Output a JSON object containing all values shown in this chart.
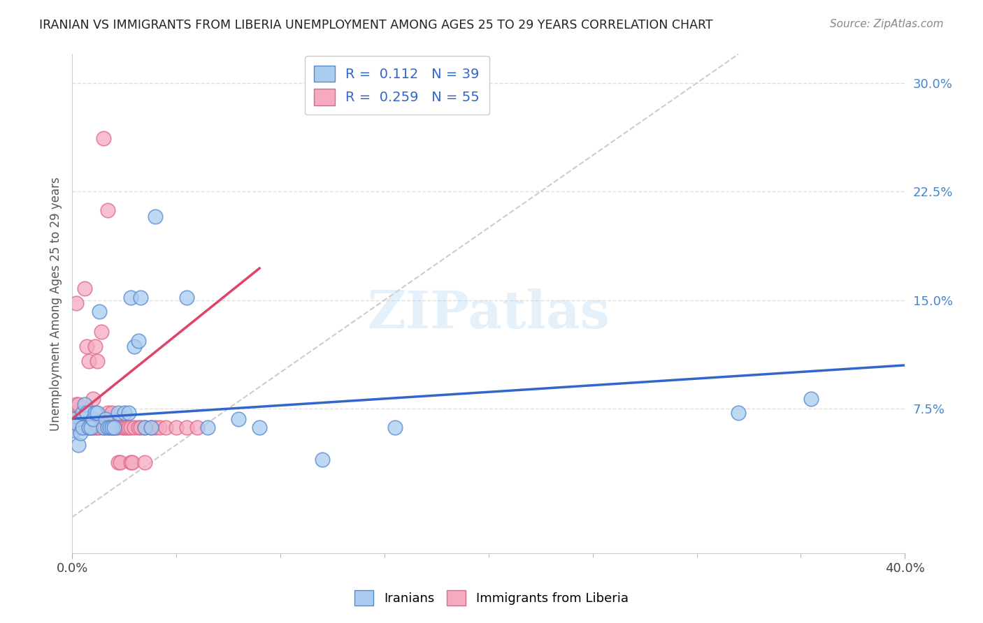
{
  "title": "IRANIAN VS IMMIGRANTS FROM LIBERIA UNEMPLOYMENT AMONG AGES 25 TO 29 YEARS CORRELATION CHART",
  "source": "Source: ZipAtlas.com",
  "ylabel": "Unemployment Among Ages 25 to 29 years",
  "xlim": [
    0.0,
    0.4
  ],
  "ylim": [
    -0.025,
    0.32
  ],
  "yticks": [
    0.075,
    0.15,
    0.225,
    0.3
  ],
  "yticklabels": [
    "7.5%",
    "15.0%",
    "22.5%",
    "30.0%"
  ],
  "watermark": "ZIPatlas",
  "iranians_color": "#aaccf0",
  "liberia_color": "#f5aac0",
  "iranians_edge": "#5588cc",
  "liberia_edge": "#dd6688",
  "line_iranians": "#3366cc",
  "line_liberia": "#dd4466",
  "diagonal_color": "#cccccc",
  "iranians_x": [
    0.0,
    0.001,
    0.002,
    0.003,
    0.004,
    0.005,
    0.005,
    0.006,
    0.007,
    0.008,
    0.009,
    0.01,
    0.011,
    0.012,
    0.013,
    0.015,
    0.016,
    0.017,
    0.018,
    0.019,
    0.02,
    0.022,
    0.025,
    0.027,
    0.028,
    0.03,
    0.032,
    0.033,
    0.035,
    0.038,
    0.04,
    0.055,
    0.065,
    0.08,
    0.09,
    0.12,
    0.155,
    0.32,
    0.355
  ],
  "iranians_y": [
    0.068,
    0.06,
    0.065,
    0.05,
    0.058,
    0.062,
    0.072,
    0.078,
    0.072,
    0.062,
    0.062,
    0.068,
    0.072,
    0.072,
    0.142,
    0.062,
    0.068,
    0.062,
    0.062,
    0.062,
    0.062,
    0.072,
    0.072,
    0.072,
    0.152,
    0.118,
    0.122,
    0.152,
    0.062,
    0.062,
    0.208,
    0.152,
    0.062,
    0.068,
    0.062,
    0.04,
    0.062,
    0.072,
    0.082
  ],
  "liberia_x": [
    0.0,
    0.001,
    0.002,
    0.002,
    0.003,
    0.003,
    0.004,
    0.005,
    0.006,
    0.006,
    0.007,
    0.007,
    0.008,
    0.008,
    0.009,
    0.01,
    0.01,
    0.011,
    0.011,
    0.012,
    0.012,
    0.013,
    0.014,
    0.015,
    0.015,
    0.016,
    0.017,
    0.017,
    0.018,
    0.019,
    0.02,
    0.02,
    0.021,
    0.022,
    0.022,
    0.023,
    0.024,
    0.025,
    0.026,
    0.027,
    0.028,
    0.028,
    0.029,
    0.03,
    0.032,
    0.033,
    0.035,
    0.035,
    0.038,
    0.04,
    0.042,
    0.045,
    0.05,
    0.055,
    0.06
  ],
  "liberia_y": [
    0.072,
    0.068,
    0.078,
    0.148,
    0.062,
    0.078,
    0.062,
    0.062,
    0.062,
    0.158,
    0.062,
    0.118,
    0.062,
    0.108,
    0.062,
    0.062,
    0.082,
    0.062,
    0.118,
    0.062,
    0.108,
    0.062,
    0.128,
    0.262,
    0.062,
    0.062,
    0.072,
    0.212,
    0.062,
    0.072,
    0.062,
    0.062,
    0.062,
    0.062,
    0.038,
    0.038,
    0.062,
    0.062,
    0.062,
    0.062,
    0.038,
    0.062,
    0.038,
    0.062,
    0.062,
    0.062,
    0.038,
    0.062,
    0.062,
    0.062,
    0.062,
    0.062,
    0.062,
    0.062,
    0.062
  ]
}
